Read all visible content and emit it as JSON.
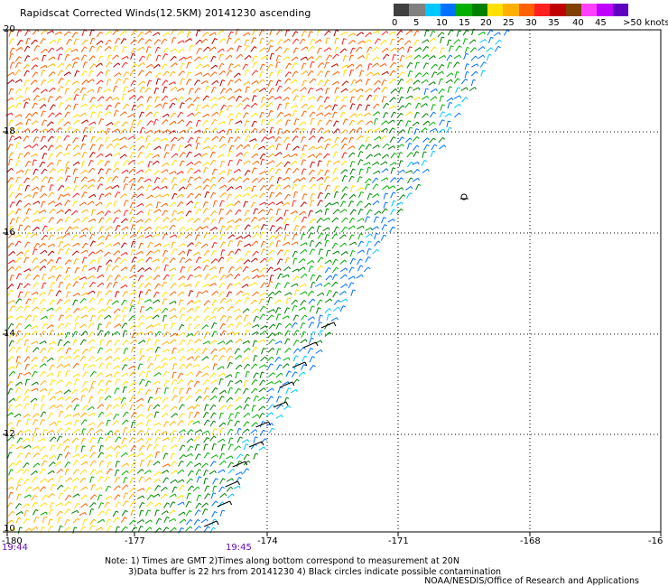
{
  "title": "Rapidscat Corrected Winds(12.5KM) 20141230 ascending",
  "legend": {
    "colors": [
      "#404040",
      "#808080",
      "#00c8ff",
      "#0070ff",
      "#00b000",
      "#008000",
      "#ffe000",
      "#ffb000",
      "#ff6000",
      "#ff2020",
      "#c00000",
      "#804000",
      "#ff40ff",
      "#c000ff",
      "#6000c0"
    ],
    "labels": [
      "0",
      "5",
      "10",
      "15",
      "20",
      "25",
      "30",
      "35",
      "40",
      "45",
      ">50 knots"
    ]
  },
  "x_ticks": [
    "-180",
    "-177",
    "-174",
    "-171",
    "-168",
    "-16"
  ],
  "y_ticks": [
    "20",
    "18",
    "16",
    "14",
    "12",
    "10"
  ],
  "time_labels": [
    "19:44",
    "19:45"
  ],
  "notes": {
    "line1": "Note: 1) Times are GMT 2)Times along bottom correspond to measurement at 20N",
    "line2": "3)Data buffer is 22 hrs from 20141230 4) Black circles indicate possible contamination"
  },
  "credit": "NOAA/NESDIS/Office of Research and Applications"
}
